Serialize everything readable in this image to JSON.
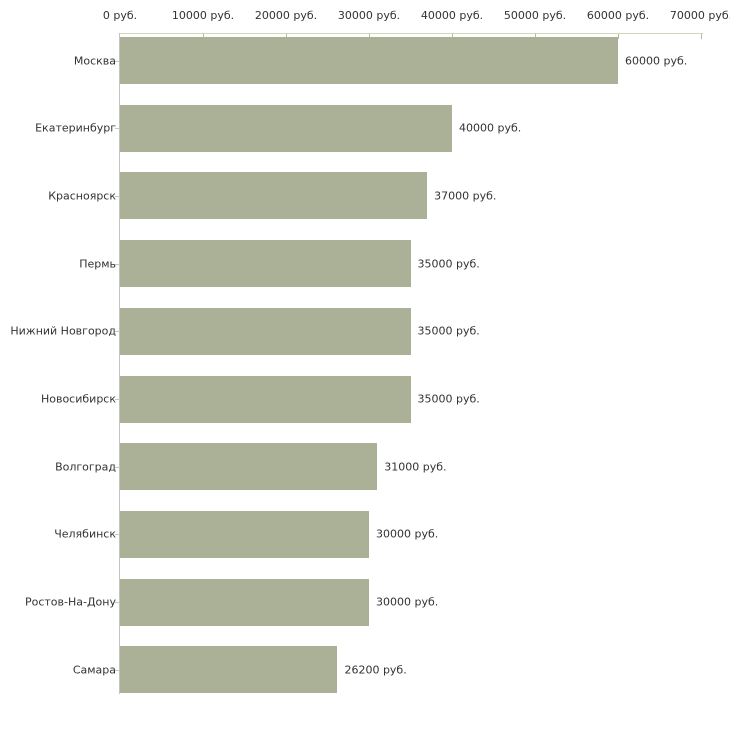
{
  "chart_data": {
    "type": "bar",
    "orientation": "horizontal",
    "title": "",
    "categories": [
      "Москва",
      "Екатеринбург",
      "Красноярск",
      "Пермь",
      "Нижний Новгород",
      "Новосибирск",
      "Волгоград",
      "Челябинск",
      "Ростов-На-Дону",
      "Самара"
    ],
    "values": [
      60000,
      40000,
      37000,
      35000,
      35000,
      35000,
      31000,
      30000,
      30000,
      26200
    ],
    "value_labels": [
      "60000 руб.",
      "40000 руб.",
      "37000 руб.",
      "35000 руб.",
      "35000 руб.",
      "35000 руб.",
      "31000 руб.",
      "30000 руб.",
      "30000 руб.",
      "26200 руб."
    ],
    "x_axis": {
      "position": "top",
      "min": 0,
      "max": 70000,
      "tick_step": 10000,
      "tick_values": [
        0,
        10000,
        20000,
        30000,
        40000,
        50000,
        60000,
        70000
      ],
      "tick_labels": [
        "0 руб.",
        "10000 руб.",
        "20000 руб.",
        "30000 руб.",
        "40000 руб.",
        "50000 руб.",
        "60000 руб.",
        "70000 руб."
      ]
    },
    "legend": false,
    "grid": false,
    "colors": {
      "bar": "#abb196",
      "axis_line": "#d4d6bc",
      "axis_tick": "#b8bb97",
      "category_tick": "#c9cbaf",
      "left_axis_line": "#c3c3c3",
      "text": "#333333",
      "background": "#ffffff"
    }
  }
}
